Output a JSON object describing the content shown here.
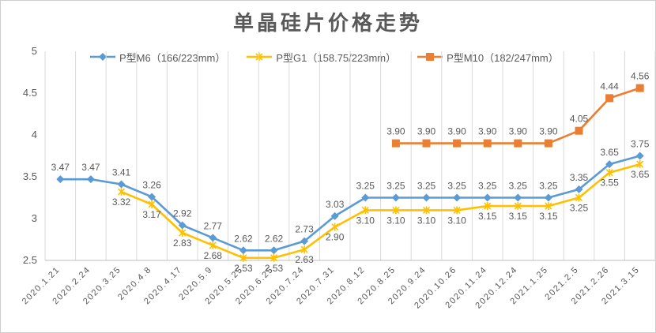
{
  "chart_data": {
    "type": "line",
    "title": "单晶硅片价格走势",
    "xlabel": "",
    "ylabel": "",
    "ylim": [
      2.5,
      5
    ],
    "yticks": [
      "2.5",
      "3",
      "3.5",
      "4",
      "4.5",
      "5"
    ],
    "grid": "vertical",
    "legend_position": "top",
    "categories": [
      "2020.1.21",
      "2020.2.24",
      "2020.3.25",
      "2020.4.8",
      "2020.4.17",
      "2020.5.9",
      "2020.5.25",
      "2020.6.25",
      "2020.7.24",
      "2020.7.31",
      "2020.8.12",
      "2020.8.25",
      "2020.9.24",
      "2020.10.26",
      "2020.11.24",
      "2020.12.24",
      "2021.1.25",
      "2021.2.5",
      "2021.2.26",
      "2021.3.15"
    ],
    "series": [
      {
        "name": "P型M6（166/223mm）",
        "color": "#5b9bd5",
        "marker": "diamond",
        "values": [
          3.47,
          3.47,
          3.41,
          3.26,
          2.92,
          2.77,
          2.62,
          2.62,
          2.73,
          3.03,
          3.25,
          3.25,
          3.25,
          3.25,
          3.25,
          3.25,
          3.25,
          3.35,
          3.65,
          3.75
        ],
        "labels": [
          "3.47",
          "3.47",
          "3.41",
          "3.26",
          "2.92",
          "2.77",
          "2.62",
          "2.62",
          "2.73",
          "3.03",
          "3.25",
          "3.25",
          "3.25",
          "3.25",
          "3.25",
          "3.25",
          "3.25",
          "3.35",
          "3.65",
          "3.75"
        ]
      },
      {
        "name": "P型G1（158.75/223mm）",
        "color": "#ffc000",
        "marker": "star",
        "values": [
          null,
          null,
          3.32,
          3.17,
          2.83,
          2.68,
          2.53,
          2.53,
          2.63,
          2.9,
          3.1,
          3.1,
          3.1,
          3.1,
          3.15,
          3.15,
          3.15,
          3.25,
          3.55,
          3.65
        ],
        "labels": [
          null,
          null,
          "3.32",
          "3.17",
          "2.83",
          "2.68",
          "2.53",
          "2.53",
          "2.63",
          "2.90",
          "3.10",
          "3.10",
          "3.10",
          "3.10",
          "3.15",
          "3.15",
          "3.15",
          "3.25",
          "3.55",
          "3.65"
        ]
      },
      {
        "name": "P型M10（182/247mm）",
        "color": "#ed7d31",
        "marker": "square",
        "values": [
          null,
          null,
          null,
          null,
          null,
          null,
          null,
          null,
          null,
          null,
          null,
          3.9,
          3.9,
          3.9,
          3.9,
          3.9,
          3.9,
          4.05,
          4.44,
          4.56
        ],
        "labels": [
          null,
          null,
          null,
          null,
          null,
          null,
          null,
          null,
          null,
          null,
          null,
          "3.90",
          "3.90",
          "3.90",
          "3.90",
          "3.90",
          "3.90",
          "4.05",
          "4.44",
          "4.56"
        ]
      }
    ]
  }
}
